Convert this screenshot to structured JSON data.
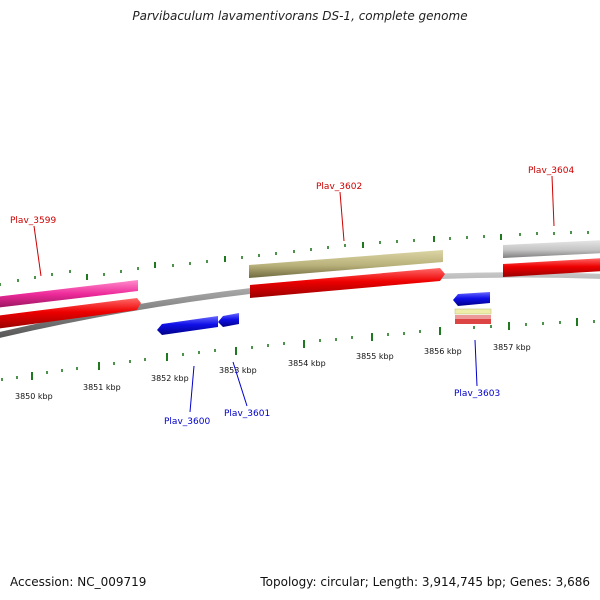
{
  "title": "Parvibaculum lavamentivorans DS-1, complete genome",
  "accession": "Accession: NC_009719",
  "topology": "Topology: circular; Length: 3,914,745 bp; Genes: 3,686",
  "kbp_labels": [
    "3850 kbp",
    "3851 kbp",
    "3852 kbp",
    "3853 kbp",
    "3854 kbp",
    "3855 kbp",
    "3856 kbp",
    "3857 kbp"
  ],
  "genes": [
    {
      "name": "Plav_3599",
      "color": "#cc0000"
    },
    {
      "name": "Plav_3600",
      "color": "#0000cc"
    },
    {
      "name": "Plav_3601",
      "color": "#0000cc"
    },
    {
      "name": "Plav_3602",
      "color": "#cc0000"
    },
    {
      "name": "Plav_3603",
      "color": "#0000cc"
    },
    {
      "name": "Plav_3604",
      "color": "#cc0000"
    }
  ],
  "colors": {
    "backbone": "#8a8a8a",
    "tick": "#1f7a1f",
    "red_feature": "#ee1111",
    "blue_feature": "#1a1ae6",
    "pink_feature": "#ee2a9a",
    "khaki_feature": "#b9b17a",
    "grey_feature": "#c4c4c4",
    "yellow_feature": "#eeeeaa"
  }
}
